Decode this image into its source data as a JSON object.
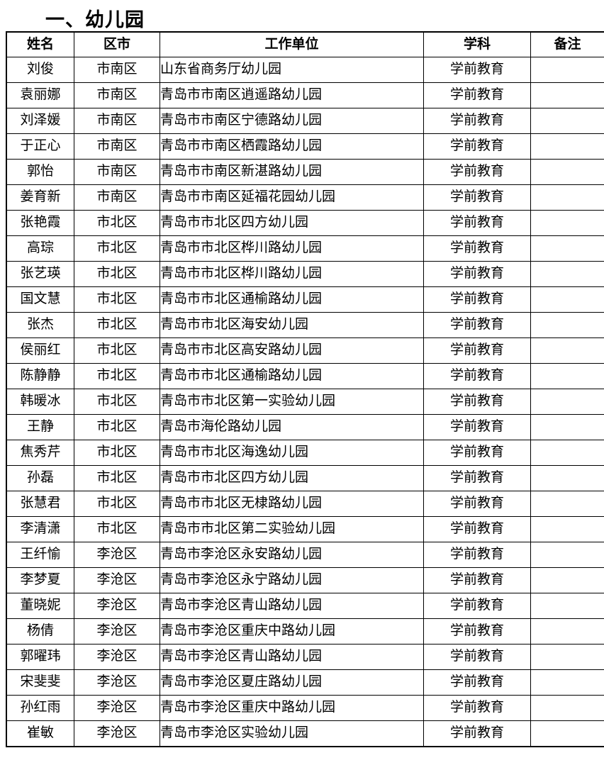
{
  "page": {
    "title": "一、幼儿园"
  },
  "table": {
    "columns": [
      "姓名",
      "区市",
      "工作单位",
      "学科",
      "备注"
    ],
    "rows": [
      {
        "name": "刘俊",
        "district": "市南区",
        "unit": "山东省商务厅幼儿园",
        "subject": "学前教育",
        "remark": ""
      },
      {
        "name": "袁丽娜",
        "district": "市南区",
        "unit": "青岛市市南区逍遥路幼儿园",
        "subject": "学前教育",
        "remark": ""
      },
      {
        "name": "刘泽媛",
        "district": "市南区",
        "unit": "青岛市市南区宁德路幼儿园",
        "subject": "学前教育",
        "remark": ""
      },
      {
        "name": "于正心",
        "district": "市南区",
        "unit": "青岛市市南区栖霞路幼儿园",
        "subject": "学前教育",
        "remark": ""
      },
      {
        "name": "郭怡",
        "district": "市南区",
        "unit": "青岛市市南区新湛路幼儿园",
        "subject": "学前教育",
        "remark": ""
      },
      {
        "name": "姜育新",
        "district": "市南区",
        "unit": "青岛市市南区延福花园幼儿园",
        "subject": "学前教育",
        "remark": ""
      },
      {
        "name": "张艳霞",
        "district": "市北区",
        "unit": "青岛市市北区四方幼儿园",
        "subject": "学前教育",
        "remark": ""
      },
      {
        "name": "高琮",
        "district": "市北区",
        "unit": "青岛市市北区桦川路幼儿园",
        "subject": "学前教育",
        "remark": ""
      },
      {
        "name": "张艺瑛",
        "district": "市北区",
        "unit": "青岛市市北区桦川路幼儿园",
        "subject": "学前教育",
        "remark": ""
      },
      {
        "name": "国文慧",
        "district": "市北区",
        "unit": "青岛市市北区通榆路幼儿园",
        "subject": "学前教育",
        "remark": ""
      },
      {
        "name": "张杰",
        "district": "市北区",
        "unit": "青岛市市北区海安幼儿园",
        "subject": "学前教育",
        "remark": ""
      },
      {
        "name": "侯丽红",
        "district": "市北区",
        "unit": "青岛市市北区高安路幼儿园",
        "subject": "学前教育",
        "remark": ""
      },
      {
        "name": "陈静静",
        "district": "市北区",
        "unit": "青岛市市北区通榆路幼儿园",
        "subject": "学前教育",
        "remark": ""
      },
      {
        "name": "韩暖冰",
        "district": "市北区",
        "unit": "青岛市市北区第一实验幼儿园",
        "subject": "学前教育",
        "remark": ""
      },
      {
        "name": "王静",
        "district": "市北区",
        "unit": "青岛市海伦路幼儿园",
        "subject": "学前教育",
        "remark": ""
      },
      {
        "name": "焦秀芹",
        "district": "市北区",
        "unit": "青岛市市北区海逸幼儿园",
        "subject": "学前教育",
        "remark": ""
      },
      {
        "name": "孙磊",
        "district": "市北区",
        "unit": "青岛市市北区四方幼儿园",
        "subject": "学前教育",
        "remark": ""
      },
      {
        "name": "张慧君",
        "district": "市北区",
        "unit": "青岛市市北区无棣路幼儿园",
        "subject": "学前教育",
        "remark": ""
      },
      {
        "name": "李清潇",
        "district": "市北区",
        "unit": "青岛市市北区第二实验幼儿园",
        "subject": "学前教育",
        "remark": ""
      },
      {
        "name": "王纤愉",
        "district": "李沧区",
        "unit": "青岛市李沧区永安路幼儿园",
        "subject": "学前教育",
        "remark": ""
      },
      {
        "name": "李梦夏",
        "district": "李沧区",
        "unit": "青岛市李沧区永宁路幼儿园",
        "subject": "学前教育",
        "remark": ""
      },
      {
        "name": "董晓妮",
        "district": "李沧区",
        "unit": "青岛市李沧区青山路幼儿园",
        "subject": "学前教育",
        "remark": ""
      },
      {
        "name": "杨倩",
        "district": "李沧区",
        "unit": "青岛市李沧区重庆中路幼儿园",
        "subject": "学前教育",
        "remark": ""
      },
      {
        "name": "郭曜玮",
        "district": "李沧区",
        "unit": "青岛市李沧区青山路幼儿园",
        "subject": "学前教育",
        "remark": ""
      },
      {
        "name": "宋斐斐",
        "district": "李沧区",
        "unit": "青岛市李沧区夏庄路幼儿园",
        "subject": "学前教育",
        "remark": ""
      },
      {
        "name": "孙红雨",
        "district": "李沧区",
        "unit": "青岛市李沧区重庆中路幼儿园",
        "subject": "学前教育",
        "remark": ""
      },
      {
        "name": "崔敏",
        "district": "李沧区",
        "unit": "青岛市李沧区实验幼儿园",
        "subject": "学前教育",
        "remark": ""
      }
    ]
  }
}
